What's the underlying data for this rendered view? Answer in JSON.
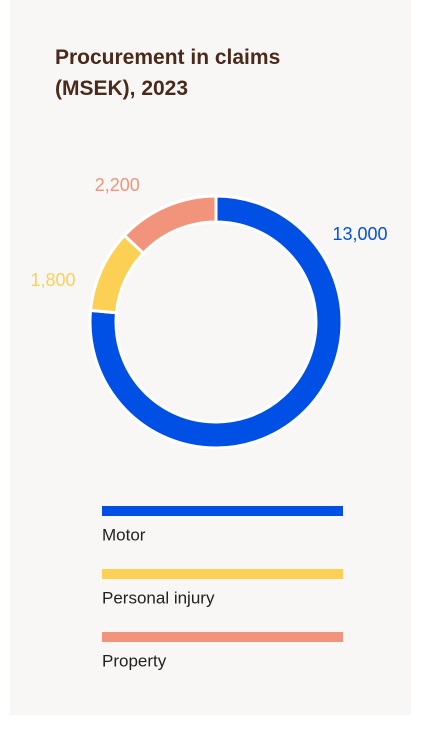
{
  "chart_data": {
    "type": "donut",
    "title": "Procurement in claims (MSEK), 2023",
    "categories": [
      "Motor",
      "Personal injury",
      "Property"
    ],
    "values": [
      13000,
      1800,
      2200
    ],
    "value_labels": [
      "13,000",
      "1,800",
      "2,200"
    ],
    "colors": [
      "#0050e6",
      "#fccf55",
      "#f2937c"
    ],
    "legend": "bottom"
  }
}
